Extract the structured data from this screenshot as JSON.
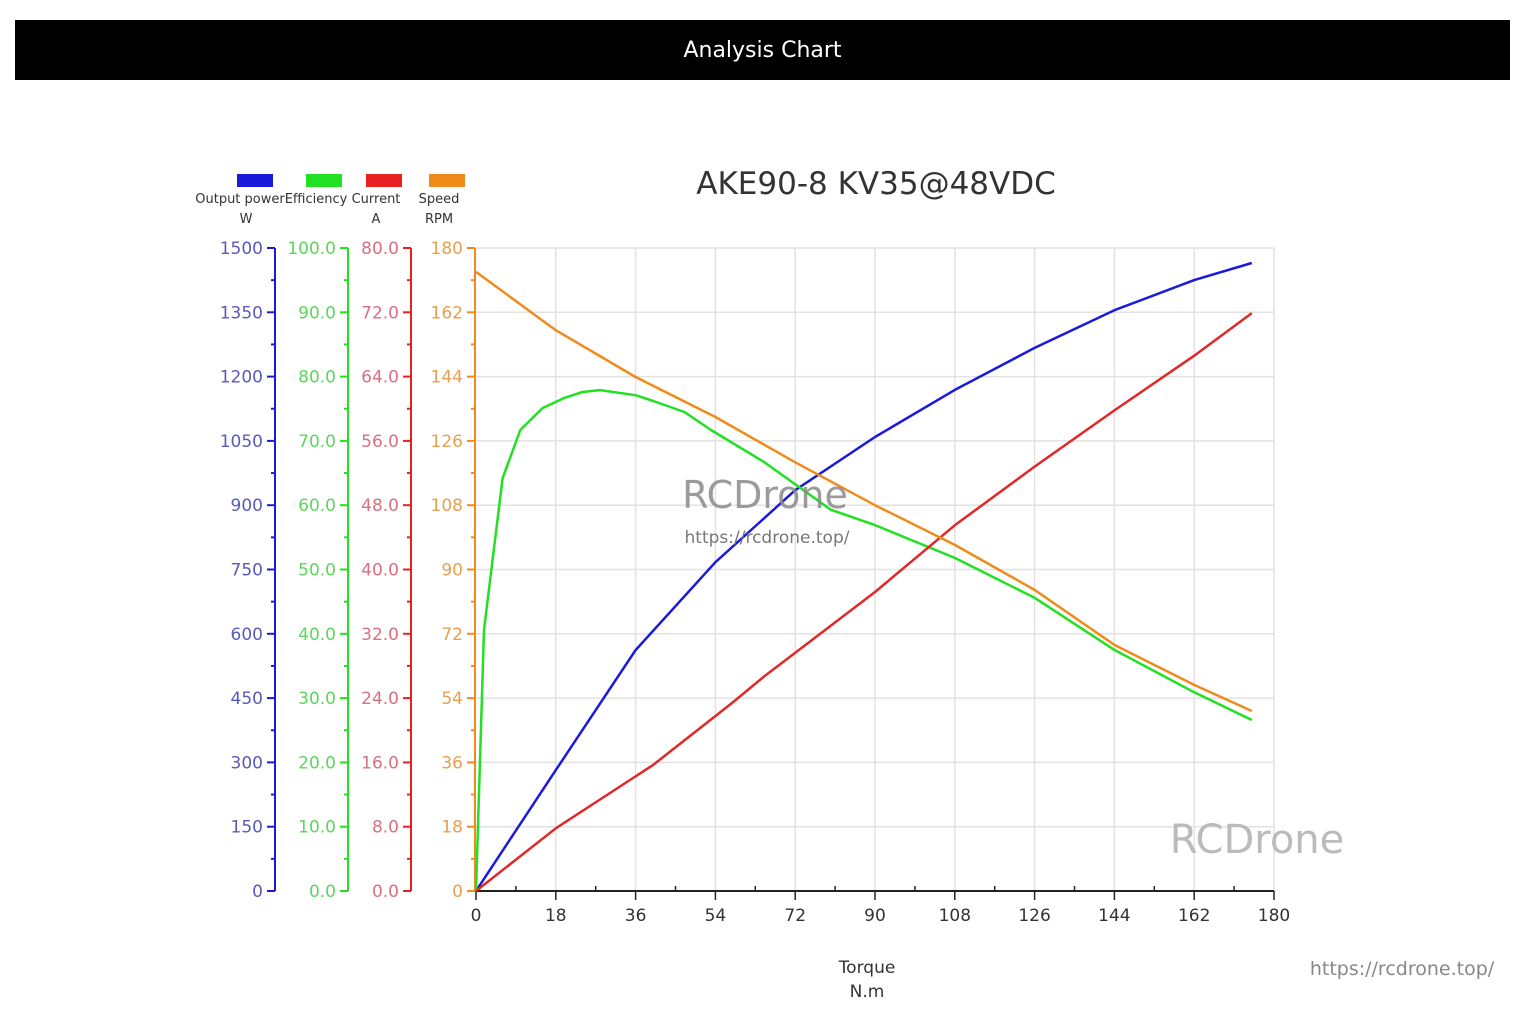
{
  "header": {
    "title": "Analysis Chart"
  },
  "watermarks": {
    "center_brand": "RCDrone",
    "center_url": "https://rcdrone.top/",
    "corner_brand": "RCDrone",
    "corner_url": "https://rcdrone.top/"
  },
  "chart_data": {
    "type": "line",
    "title": "AKE90-8 KV35@48VDC",
    "xlabel": "Torque",
    "xunit": "N.m",
    "xlim": [
      0,
      180
    ],
    "xticks": [
      0,
      18,
      36,
      54,
      72,
      90,
      108,
      126,
      144,
      162,
      180
    ],
    "grid": true,
    "legend_placement": "top-left",
    "axes": [
      {
        "name": "Output power",
        "unit": "W",
        "color": "#1a1adb",
        "tick_color": "#5a5ab8",
        "ylim": [
          0,
          1500
        ],
        "ticks": [
          "0",
          "150",
          "300",
          "450",
          "600",
          "750",
          "900",
          "1050",
          "1200",
          "1350",
          "1500"
        ]
      },
      {
        "name": "Efficiency",
        "unit": "",
        "color": "#22e022",
        "tick_color": "#5cd65c",
        "ylim": [
          0,
          100
        ],
        "ticks": [
          "0.0",
          "10.0",
          "20.0",
          "30.0",
          "40.0",
          "50.0",
          "60.0",
          "70.0",
          "80.0",
          "90.0",
          "100.0"
        ]
      },
      {
        "name": "Current",
        "unit": "A",
        "color": "#e82020",
        "tick_color": "#d87080",
        "ylim": [
          0,
          80
        ],
        "ticks": [
          "0.0",
          "8.0",
          "16.0",
          "24.0",
          "32.0",
          "40.0",
          "48.0",
          "56.0",
          "64.0",
          "72.0",
          "80.0"
        ]
      },
      {
        "name": "Speed",
        "unit": "RPM",
        "color": "#f08a1a",
        "tick_color": "#e8a050",
        "ylim": [
          0,
          180
        ],
        "ticks": [
          "0",
          "18",
          "36",
          "54",
          "72",
          "90",
          "108",
          "126",
          "144",
          "162",
          "180"
        ]
      }
    ],
    "series": [
      {
        "name": "Output power",
        "axis": 0,
        "color": "#1a1adb",
        "x": [
          0,
          18,
          36,
          54,
          72,
          90,
          108,
          126,
          144,
          162,
          175
        ],
        "y": [
          0,
          282,
          562,
          767,
          935,
          1059,
          1169,
          1267,
          1355,
          1425,
          1465
        ]
      },
      {
        "name": "Efficiency",
        "axis": 1,
        "color": "#22e022",
        "x": [
          0,
          1.8,
          6,
          10,
          15,
          20,
          24,
          28,
          36,
          40,
          47,
          53,
          65,
          80,
          90,
          108,
          126,
          144,
          162,
          175
        ],
        "y": [
          0,
          40.6,
          64.2,
          71.7,
          75.1,
          76.7,
          77.6,
          77.9,
          77.1,
          76.2,
          74.5,
          71.7,
          66.7,
          59.3,
          56.9,
          51.8,
          45.6,
          37.5,
          30.9,
          26.6
        ]
      },
      {
        "name": "Current",
        "axis": 2,
        "color": "#e02828",
        "x": [
          0,
          18,
          40,
          58,
          65,
          90,
          108,
          126,
          144,
          162,
          175
        ],
        "y": [
          0,
          7.8,
          15.7,
          23.5,
          26.7,
          37.2,
          45.5,
          52.8,
          59.8,
          66.6,
          71.9
        ]
      },
      {
        "name": "Speed",
        "axis": 3,
        "color": "#f08a1a",
        "x": [
          0,
          18,
          36,
          54,
          72,
          90,
          108,
          126,
          144,
          162,
          175
        ],
        "y": [
          173.3,
          157,
          143.9,
          132.7,
          120,
          108,
          96.9,
          84.3,
          68.9,
          57.7,
          50.4
        ]
      }
    ]
  }
}
